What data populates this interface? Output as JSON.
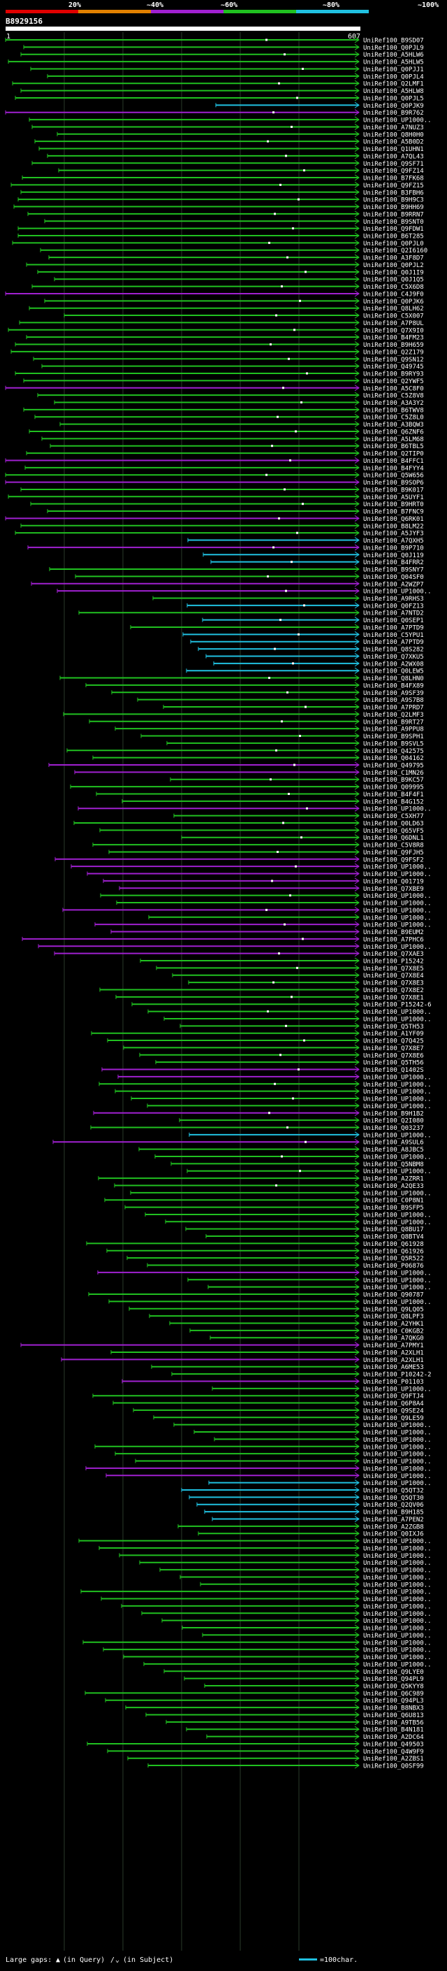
{
  "chart_data": {
    "type": "alignment-overview",
    "query_id": "B8929156",
    "axis_start": "1",
    "axis_end": "607",
    "scale_labels": [
      "20%",
      "~40%",
      "~60%",
      "~80%",
      "~100%"
    ],
    "identity_colors": {
      "low": "#e00000",
      "mid_low": "#e08000",
      "mid": "#a020d0",
      "mid_high": "#20c020",
      "high": "#20c0e0"
    },
    "hit_labels": [
      "UniRef100_B9SD07",
      "UniRef100_Q0PJL9",
      "UniRef100_A5HLW6",
      "UniRef100_A5HLW5",
      "UniRef100_Q0PJJ1",
      "UniRef100_Q0PJL4",
      "UniRef100_Q2LMF1",
      "UniRef100_A5HLW8",
      "UniRef100_Q0PJL5",
      "UniRef100_Q0PJK9",
      "UniRef100_B9R762",
      "UniRef100_UP1000..",
      "UniRef100_A7NUZ3",
      "UniRef100_Q8H0H0",
      "UniRef100_A5B0D2",
      "UniRef100_Q1UHN1",
      "UniRef100_A7QL43",
      "UniRef100_Q9SF71",
      "UniRef100_Q9FZ14",
      "UniRef100_B7FK68",
      "UniRef100_Q9FZ15",
      "UniRef100_B3FBH6",
      "UniRef100_B9H9C3",
      "UniRef100_B9HH69",
      "UniRef100_B9RRN7",
      "UniRef100_B9SNT0",
      "UniRef100_Q9FDW1",
      "UniRef100_B6T285",
      "UniRef100_Q0PJL0",
      "UniRef100_Q2I6160",
      "UniRef100_A3F8D7",
      "UniRef100_Q0PJL2",
      "UniRef100_Q0J1I9",
      "UniRef100_Q0J1Q5",
      "UniRef100_C5X6D8",
      "UniRef100_C4J9F0",
      "UniRef100_Q0PJK6",
      "UniRef100_Q8LH62",
      "UniRef100_C5X007",
      "UniRef100_A7P8UL",
      "UniRef100_Q7X9I0",
      "UniRef100_B4FM23",
      "UniRef100_B9H659",
      "UniRef100_Q2Z179",
      "UniRef100_Q9SN12",
      "UniRef100_Q49745",
      "UniRef100_B9RY93",
      "UniRef100_Q2YWF5",
      "UniRef100_A5C8F0",
      "UniRef100_C5Z8V8",
      "UniRef100_A3A3Y2",
      "UniRef100_B6TWV8",
      "UniRef100_C5Z8L0",
      "UniRef100_A3BQW3",
      "UniRef100_Q6ZNF6",
      "UniRef100_A5LM68",
      "UniRef100_B6TBL5",
      "UniRef100_Q2TIP0",
      "UniRef100_B4FFC1",
      "UniRef100_B4FYY4",
      "UniRef100_Q5W656",
      "UniRef100_B9SOP6",
      "UniRef100_B9K017",
      "UniRef100_A5UYF1",
      "UniRef100_B9HRT0",
      "UniRef100_B7FNC9",
      "UniRef100_Q6RK01",
      "UniRef100_B8LM22",
      "UniRef100_A5JYF3",
      "UniRef100_A7QXH5",
      "UniRef100_B9P710",
      "UniRef100_Q0J119",
      "UniRef100_B4FRR2",
      "UniRef100_B9SNY7",
      "UniRef100_Q04SF0",
      "UniRef100_A2WZP7",
      "UniRef100_UP1000..",
      "UniRef100_A9RHS3",
      "UniRef100_Q0FZ13",
      "UniRef100_A7NTD2",
      "UniRef100_Q0SEP1",
      "UniRef100_A7PTD9",
      "UniRef100_C5YPU1",
      "UniRef100_A7PTD9",
      "UniRef100_Q8S282",
      "UniRef100_Q7XKU5",
      "UniRef100_A2WX08",
      "UniRef100_Q0LEW5",
      "UniRef100_Q8LHN0",
      "UniRef100_B4FX89",
      "UniRef100_A9SF39",
      "UniRef100_A9S7B8",
      "UniRef100_A7PRD7",
      "UniRef100_Q2LMF3",
      "UniRef100_B9RT27",
      "UniRef100_A9PPU8",
      "UniRef100_B9SPH1",
      "UniRef100_B9SVL5",
      "UniRef100_Q42575",
      "UniRef100_Q04162",
      "UniRef100_Q49795",
      "UniRef100_C1MN26",
      "UniRef100_B9KC57",
      "UniRef100_Q09995",
      "UniRef100_B4F4F1",
      "UniRef100_B4G152",
      "UniRef100_UP1000..",
      "UniRef100_C5XH77",
      "UniRef100_Q0LD63",
      "UniRef100_Q65VF5",
      "UniRef100_Q6DNL1",
      "UniRef100_C5V8R8",
      "UniRef100_Q9FJH5",
      "UniRef100_Q9FSF2",
      "UniRef100_UP1000..",
      "UniRef100_UP1000..",
      "UniRef100_Q01719",
      "UniRef100_Q7XBE9",
      "UniRef100_UP1000..",
      "UniRef100_UP1000..",
      "UniRef100_UP1000..",
      "UniRef100_UP1000..",
      "UniRef100_UP1000..",
      "UniRef100_B9EUM2",
      "UniRef100_A7PHC6",
      "UniRef100_UP1000..",
      "UniRef100_Q7XAE3",
      "UniRef100_P15242",
      "UniRef100_Q7X8E5",
      "UniRef100_Q7X8E4",
      "UniRef100_Q7X8E3",
      "UniRef100_Q7X8E2",
      "UniRef100_Q7X8E1",
      "UniRef100_P15242-6",
      "UniRef100_UP1000..",
      "UniRef100_UP1000..",
      "UniRef100_Q5TH53",
      "UniRef100_A1YF09",
      "UniRef100_Q7Q425",
      "UniRef100_Q7X8E7",
      "UniRef100_Q7X8E6",
      "UniRef100_Q5TH56",
      "UniRef100_Q1402S",
      "UniRef100_UP1000..",
      "UniRef100_UP1000..",
      "UniRef100_UP1000..",
      "UniRef100_UP1000..",
      "UniRef100_UP1000..",
      "UniRef100_B9H1B2",
      "UniRef100_Q2I080",
      "UniRef100_Q03237",
      "UniRef100_UP1000..",
      "UniRef100_A9SUL6",
      "UniRef100_A8JBC5",
      "UniRef100_UP1000..",
      "UniRef100_Q5NBM8",
      "UniRef100_UP1000..",
      "UniRef100_A2ZRR1",
      "UniRef100_A2QE33",
      "UniRef100_UP1000..",
      "UniRef100_C0P8N1",
      "UniRef100_B9SFP5",
      "UniRef100_UP1000..",
      "UniRef100_UP1000..",
      "UniRef100_Q8BU17",
      "UniRef100_Q8BTV4",
      "UniRef100_Q61928",
      "UniRef100_Q61926",
      "UniRef100_Q5R522",
      "UniRef100_P06876",
      "UniRef100_UP1000..",
      "UniRef100_UP1000..",
      "UniRef100_UP1000..",
      "UniRef100_Q90787",
      "UniRef100_UP1000..",
      "UniRef100_Q9LQ05",
      "UniRef100_Q8LPF3",
      "UniRef100_A2YHK1",
      "UniRef100_C0KGB2",
      "UniRef100_A7QKG0",
      "UniRef100_A7PMY1",
      "UniRef100_A2XLH1",
      "UniRef100_A2XLH1",
      "UniRef100_A6ME53",
      "UniRef100_P10242-2",
      "UniRef100_P01103",
      "UniRef100_UP1000..",
      "UniRef100_Q9FTJ4",
      "UniRef100_Q6P8A4",
      "UniRef100_Q9SE24",
      "UniRef100_Q9LE59",
      "UniRef100_UP1000..",
      "UniRef100_UP1000..",
      "UniRef100_UP1000..",
      "UniRef100_UP1000..",
      "UniRef100_UP1000..",
      "UniRef100_UP1000..",
      "UniRef100_UP1000..",
      "UniRef100_UP1000..",
      "UniRef100_UP1000..",
      "UniRef100_Q5QT32",
      "UniRef100_Q5QT30",
      "UniRef100_Q2QV06",
      "UniRef100_B9H185",
      "UniRef100_A7PEN2",
      "UniRef100_A2ZGB8",
      "UniRef100_Q0IXJ6",
      "UniRef100_UP1000..",
      "UniRef100_UP1000..",
      "UniRef100_UP1000..",
      "UniRef100_UP1000..",
      "UniRef100_UP1000..",
      "UniRef100_UP1000..",
      "UniRef100_UP1000..",
      "UniRef100_UP1000..",
      "UniRef100_UP1000..",
      "UniRef100_UP1000..",
      "UniRef100_UP1000..",
      "UniRef100_UP1000..",
      "UniRef100_UP1000..",
      "UniRef100_UP1000..",
      "UniRef100_UP1000..",
      "UniRef100_UP1000..",
      "UniRef100_UP1000..",
      "UniRef100_UP1000..",
      "UniRef100_Q9LYE0",
      "UniRef100_Q94PL9",
      "UniRef100_Q5KYY8",
      "UniRef100_Q6C989",
      "UniRef100_Q94PL3",
      "UniRef100_B8NBX3",
      "UniRef100_Q6U813",
      "UniRef100_A9TB56",
      "UniRef100_B4N181",
      "UniRef100_A2DC64",
      "UniRef100_Q49503",
      "UniRef100_Q4W9F9",
      "UniRef100_A2ZBS1",
      "UniRef100_Q0SF99"
    ],
    "legend": {
      "gaps_label": "Large gaps:",
      "gap_query": "(in Query)",
      "gap_separator": "/",
      "gap_subject": "(in Subject)",
      "scale_label": "=100char."
    }
  }
}
